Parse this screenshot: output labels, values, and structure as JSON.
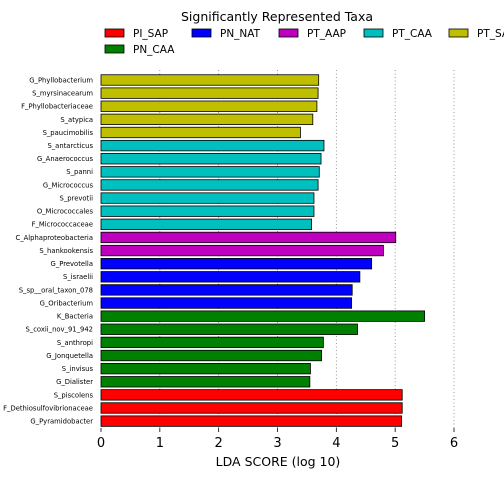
{
  "chart_data": {
    "type": "bar",
    "orientation": "horizontal",
    "title": "Significantly Represented Taxa",
    "xlabel": "LDA SCORE (log 10)",
    "ylabel": "",
    "xlim": [
      0,
      6
    ],
    "xticks": [
      "0",
      "1",
      "2",
      "3",
      "4",
      "5",
      "6"
    ],
    "grid": "vertical-dotted",
    "legend_position": "top",
    "legend": [
      {
        "name": "PI_SAP",
        "color": "#ff0000"
      },
      {
        "name": "PN_NAT",
        "color": "#0000ff"
      },
      {
        "name": "PT_AAP",
        "color": "#bf00bf"
      },
      {
        "name": "PT_CAA",
        "color": "#00bfbf"
      },
      {
        "name": "PT_SAP",
        "color": "#bfbf00"
      },
      {
        "name": "PN_CAA",
        "color": "#008000"
      }
    ],
    "bars": [
      {
        "label": "G_Phyllobacterium",
        "value": 3.7,
        "group": "PT_SAP"
      },
      {
        "label": "S_myrsinacearum",
        "value": 3.69,
        "group": "PT_SAP"
      },
      {
        "label": "F_Phyllobacteriaceae",
        "value": 3.67,
        "group": "PT_SAP"
      },
      {
        "label": "S_atypica",
        "value": 3.6,
        "group": "PT_SAP"
      },
      {
        "label": "S_paucimobilis",
        "value": 3.39,
        "group": "PT_SAP"
      },
      {
        "label": "S_antarcticus",
        "value": 3.79,
        "group": "PT_CAA"
      },
      {
        "label": "G_Anaerococcus",
        "value": 3.74,
        "group": "PT_CAA"
      },
      {
        "label": "S_panni",
        "value": 3.71,
        "group": "PT_CAA"
      },
      {
        "label": "G_Micrococcus",
        "value": 3.69,
        "group": "PT_CAA"
      },
      {
        "label": "S_prevotii",
        "value": 3.62,
        "group": "PT_CAA"
      },
      {
        "label": "O_Micrococcales",
        "value": 3.62,
        "group": "PT_CAA"
      },
      {
        "label": "F_Micrococcaceae",
        "value": 3.58,
        "group": "PT_CAA"
      },
      {
        "label": "C_Alphaproteobacteria",
        "value": 5.01,
        "group": "PT_AAP"
      },
      {
        "label": "S_hankookensis",
        "value": 4.8,
        "group": "PT_AAP"
      },
      {
        "label": "G_Prevotella",
        "value": 4.6,
        "group": "PN_NAT"
      },
      {
        "label": "S_israelii",
        "value": 4.4,
        "group": "PN_NAT"
      },
      {
        "label": "S_sp__oral_taxon_078",
        "value": 4.27,
        "group": "PN_NAT"
      },
      {
        "label": "G_Oribacterium",
        "value": 4.26,
        "group": "PN_NAT"
      },
      {
        "label": "K_Bacteria",
        "value": 5.5,
        "group": "PN_CAA"
      },
      {
        "label": "S_coxii_nov_91_942",
        "value": 4.36,
        "group": "PN_CAA"
      },
      {
        "label": "S_anthropi",
        "value": 3.78,
        "group": "PN_CAA"
      },
      {
        "label": "G_Jonquetella",
        "value": 3.75,
        "group": "PN_CAA"
      },
      {
        "label": "S_invisus",
        "value": 3.56,
        "group": "PN_CAA"
      },
      {
        "label": "G_Dialister",
        "value": 3.55,
        "group": "PN_CAA"
      },
      {
        "label": "S_piscolens",
        "value": 5.12,
        "group": "PI_SAP"
      },
      {
        "label": "F_Dethiosulfovibrionaceae",
        "value": 5.12,
        "group": "PI_SAP"
      },
      {
        "label": "G_Pyramidobacter",
        "value": 5.11,
        "group": "PI_SAP"
      }
    ]
  }
}
